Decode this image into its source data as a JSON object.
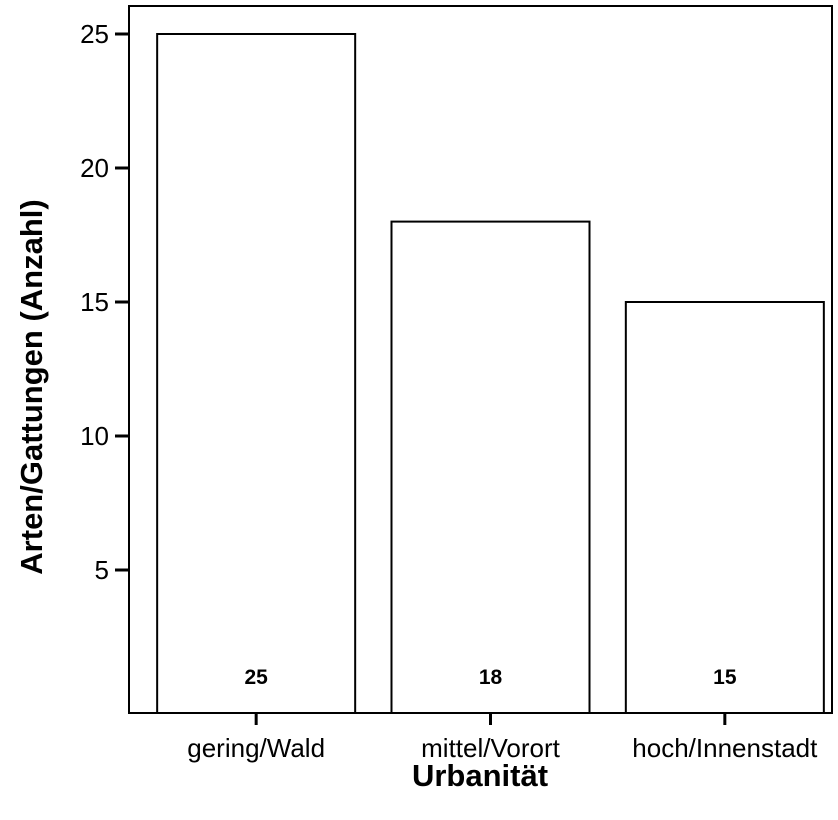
{
  "chart_data": {
    "type": "bar",
    "categories": [
      "gering/Wald",
      "mittel/Vorort",
      "hoch/Innenstadt"
    ],
    "values": [
      25,
      18,
      15
    ],
    "data_labels": [
      "25",
      "18",
      "15"
    ],
    "title": "",
    "xlabel": "Urbanität",
    "ylabel": "Arten/Gattungen (Anzahl)",
    "ylim": [
      0,
      26
    ],
    "yticks": [
      5,
      10,
      15,
      20,
      25
    ],
    "ytick_labels": [
      "5",
      "10",
      "15",
      "20",
      "25"
    ],
    "grid": false,
    "legend": "none",
    "colors": {
      "bar_fill": "#ffffff",
      "bar_stroke": "#000000",
      "axis": "#000000"
    }
  }
}
